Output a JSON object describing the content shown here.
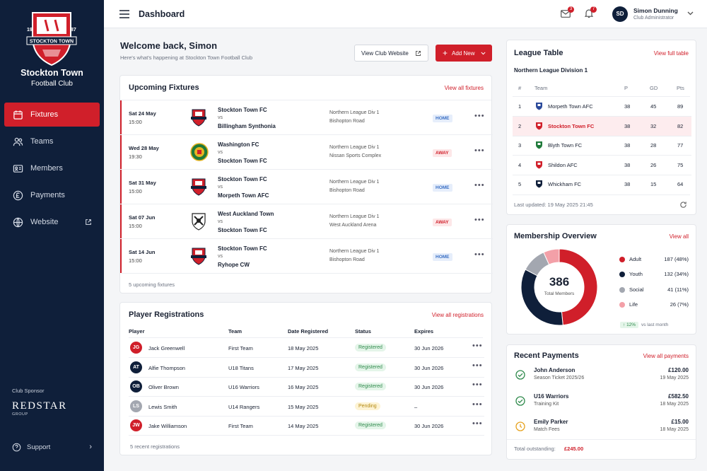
{
  "sidebar": {
    "crest_text": "STOCKTON TOWN",
    "crest_year_left": "19",
    "crest_year_right": "87",
    "club_line1": "Stockton Town",
    "club_line2": "Football Club",
    "items": [
      {
        "label": "Fixtures",
        "icon": "calendar-icon"
      },
      {
        "label": "Teams",
        "icon": "users-icon"
      },
      {
        "label": "Members",
        "icon": "id-card-icon"
      },
      {
        "label": "Payments",
        "icon": "pound-icon"
      },
      {
        "label": "Website",
        "icon": "globe-icon"
      }
    ],
    "sponsor_label": "Club Sponsor",
    "sponsor_name": "REDSTAR",
    "sponsor_sub": "GROUP",
    "support_label": "Support"
  },
  "header": {
    "title": "Dashboard",
    "mail_count": "3",
    "bell_count": "7",
    "user_initials": "SD",
    "user_name": "Simon Dunning",
    "user_role": "Club Administrator"
  },
  "welcome": {
    "title": "Welcome back, Simon",
    "subtitle": "Here's what's happening at Stockton Town Football Club",
    "view_site": "View Club Website",
    "add_new": "Add New"
  },
  "fixtures": {
    "title": "Upcoming Fixtures",
    "link": "View all fixtures",
    "footer": "5 upcoming fixtures",
    "rows": [
      {
        "date": "Sat 24 May",
        "time": "15:00",
        "team1": "Stockton Town FC",
        "vs": "vs",
        "team2": "Billingham Synthonia",
        "league": "Northern League Div 1",
        "venue": "Bishopton Road",
        "tag": "HOME",
        "crest": "stockton"
      },
      {
        "date": "Wed 28 May",
        "time": "19:30",
        "team1": "Washington FC",
        "vs": "vs",
        "team2": "Stockton Town FC",
        "league": "Northern League Div 1",
        "venue": "Nissan Sports Complex",
        "tag": "AWAY",
        "crest": "washington"
      },
      {
        "date": "Sat 31 May",
        "time": "15:00",
        "team1": "Stockton Town FC",
        "vs": "vs",
        "team2": "Morpeth Town AFC",
        "league": "Northern League Div 1",
        "venue": "Bishopton Road",
        "tag": "HOME",
        "crest": "stockton"
      },
      {
        "date": "Sat 07 Jun",
        "time": "15:00",
        "team1": "West Auckland Town",
        "vs": "vs",
        "team2": "Stockton Town FC",
        "league": "Northern League Div 1",
        "venue": "West Auckland Arena",
        "tag": "AWAY",
        "crest": "westauckland"
      },
      {
        "date": "Sat 14 Jun",
        "time": "15:00",
        "team1": "Stockton Town FC",
        "vs": "vs",
        "team2": "Ryhope CW",
        "league": "Northern League Div 1",
        "venue": "Bishopton Road",
        "tag": "HOME",
        "crest": "stockton"
      }
    ]
  },
  "registrations": {
    "title": "Player Registrations",
    "link": "View all registrations",
    "footer": "5 recent registrations",
    "headers": [
      "Player",
      "Team",
      "Date Registered",
      "Status",
      "Expires"
    ],
    "rows": [
      {
        "initials": "JG",
        "color": "#d01f2a",
        "name": "Jack Greenwell",
        "team": "First Team",
        "date": "18 May 2025",
        "status": "Registered",
        "expires": "30 Jun 2026"
      },
      {
        "initials": "AT",
        "color": "#0f1f3a",
        "name": "Alfie Thompson",
        "team": "U18 Titans",
        "date": "17 May 2025",
        "status": "Registered",
        "expires": "30 Jun 2026"
      },
      {
        "initials": "OB",
        "color": "#0f1f3a",
        "name": "Oliver Brown",
        "team": "U16 Warriors",
        "date": "16 May 2025",
        "status": "Registered",
        "expires": "30 Jun 2026"
      },
      {
        "initials": "LS",
        "color": "#a3a7b0",
        "name": "Lewis Smith",
        "team": "U14 Rangers",
        "date": "15 May 2025",
        "status": "Pending",
        "expires": "–"
      },
      {
        "initials": "JW",
        "color": "#d01f2a",
        "name": "Jake Williamson",
        "team": "First Team",
        "date": "14 May 2025",
        "status": "Registered",
        "expires": "30 Jun 2026"
      }
    ]
  },
  "league": {
    "title": "League Table",
    "link": "View full table",
    "division": "Northern League Division 1",
    "headers": [
      "#",
      "Team",
      "P",
      "GD",
      "Pts"
    ],
    "rows": [
      {
        "pos": "1",
        "team": "Morpeth Town AFC",
        "p": "38",
        "gd": "45",
        "pts": "89",
        "crest": "#2b4a9b"
      },
      {
        "pos": "2",
        "team": "Stockton Town FC",
        "p": "38",
        "gd": "32",
        "pts": "82",
        "crest": "#d01f2a",
        "highlight": true
      },
      {
        "pos": "3",
        "team": "Blyth Town FC",
        "p": "38",
        "gd": "28",
        "pts": "77",
        "crest": "#1f7a3a"
      },
      {
        "pos": "4",
        "team": "Shildon AFC",
        "p": "38",
        "gd": "26",
        "pts": "75",
        "crest": "#d01f2a"
      },
      {
        "pos": "5",
        "team": "Whickham FC",
        "p": "38",
        "gd": "15",
        "pts": "64",
        "crest": "#0f1f3a"
      }
    ],
    "updated": "Last updated: 19 May 2025 21:45"
  },
  "membership": {
    "title": "Membership Overview",
    "link": "View all",
    "total": "386",
    "total_label": "Total Members",
    "change": "12%",
    "change_label": "vs last month",
    "segments": [
      {
        "name": "Adult",
        "value": 187,
        "label": "187 (48%)",
        "color": "#d01f2a"
      },
      {
        "name": "Youth",
        "value": 132,
        "label": "132 (34%)",
        "color": "#0f1f3a"
      },
      {
        "name": "Social",
        "value": 41,
        "label": "41 (11%)",
        "color": "#a3a7b0"
      },
      {
        "name": "Life",
        "value": 26,
        "label": "26 (7%)",
        "color": "#f3a0a8"
      }
    ]
  },
  "payments": {
    "title": "Recent Payments",
    "link": "View all payments",
    "rows": [
      {
        "name": "John Anderson",
        "desc": "Season Ticket 2025/26",
        "amount": "£120.00",
        "date": "19 May 2025",
        "state": "paid"
      },
      {
        "name": "U16 Warriors",
        "desc": "Training Kit",
        "amount": "£582.50",
        "date": "18 May 2025",
        "state": "paid"
      },
      {
        "name": "Emily Parker",
        "desc": "Match Fees",
        "amount": "£15.00",
        "date": "18 May 2025",
        "state": "pending"
      }
    ],
    "outstanding_label": "Total outstanding:",
    "outstanding_value": "£245.00"
  }
}
